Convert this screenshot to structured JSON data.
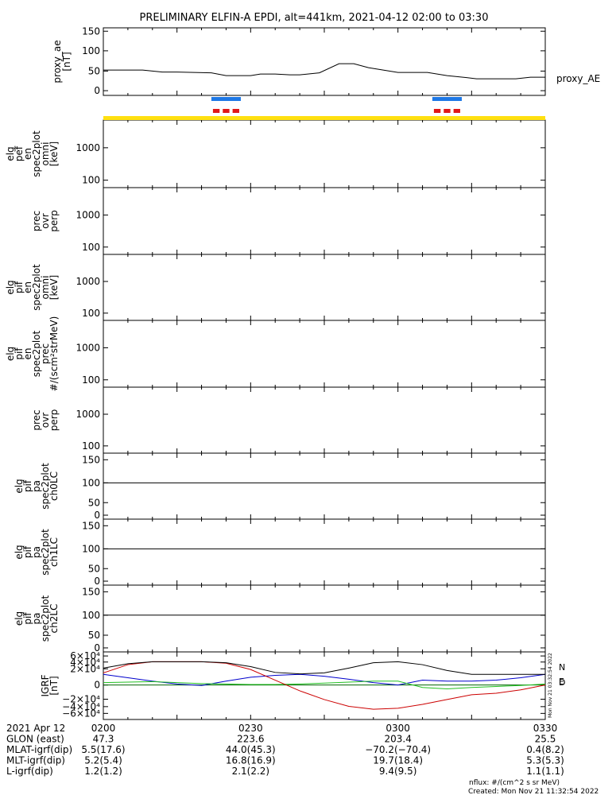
{
  "title": "PRELIMINARY ELFIN-A EPDI, alt=441km, 2021-04-12 02:00 to 03:30",
  "colors": {
    "ae_line": "#000000",
    "bar_blue": "#1e78e6",
    "bar_red": "#e01818",
    "bar_yellow": "#ffe010",
    "grf_n": "#0000cc",
    "grf_e": "#22c022",
    "grf_d": "#cc0000",
    "grf_total": "#000000"
  },
  "panels": [
    {
      "id": "proxy_ae",
      "ylabels": [
        "proxy_ae",
        "[nT]"
      ],
      "ticks": [
        "150",
        "100",
        "50",
        "0"
      ],
      "right_label": "proxy_AE"
    },
    {
      "id": "elb_pef",
      "ylabels": [
        "elg",
        "pef",
        "en",
        "spec2plot",
        "omni",
        "[keV]"
      ],
      "ticks": [
        "1000",
        "100"
      ]
    },
    {
      "id": "prec_ovr_perp_1",
      "ylabels": [
        "prec",
        "ovr",
        "perp"
      ],
      "ticks": [
        "1000",
        "100"
      ]
    },
    {
      "id": "elg_pif_omni",
      "ylabels": [
        "elg",
        "pif",
        "en",
        "spec2plot",
        "omni",
        "[keV]"
      ],
      "ticks": [
        "1000",
        "100"
      ]
    },
    {
      "id": "elg_pif_prec",
      "ylabels": [
        "elg",
        "pif",
        "en",
        "spec2plot",
        "prec",
        "#/(scm²strMeV)"
      ],
      "ticks": [
        "1000",
        "100"
      ]
    },
    {
      "id": "prec_ovr_perp_2",
      "ylabels": [
        "prec",
        "ovr",
        "perp"
      ],
      "ticks": [
        "1000",
        "100"
      ]
    },
    {
      "id": "ch0LC",
      "ylabels": [
        "elg",
        "pif",
        "pa",
        "spec2plot",
        "ch0LC"
      ],
      "ticks": [
        "150",
        "100",
        "50",
        "0"
      ]
    },
    {
      "id": "ch1LC",
      "ylabels": [
        "elg",
        "pif",
        "pa",
        "spec2plot",
        "ch1LC"
      ],
      "ticks": [
        "150",
        "100",
        "50",
        "0"
      ]
    },
    {
      "id": "ch2LC",
      "ylabels": [
        "elg",
        "pif",
        "pa",
        "spec2plot",
        "ch2LC"
      ],
      "ticks": [
        "150",
        "100",
        "50",
        "0"
      ]
    },
    {
      "id": "grf",
      "ylabels": [
        "IGRF",
        "[nT]"
      ],
      "ticks": [
        "6×10⁴",
        "4×10⁴",
        "2×10⁴",
        "0",
        "−2×10⁴",
        "−4×10⁴",
        "−6×10⁴"
      ]
    }
  ],
  "grf_legend": {
    "n": "N",
    "e": "E",
    "d": "D"
  },
  "side_stamp": "Mon Nov 21 03:32:54 2022",
  "footer": {
    "rows": [
      {
        "label": "2021 Apr 12",
        "values": [
          "0200",
          "0230",
          "0300",
          "0330"
        ]
      },
      {
        "label": "GLON (east)",
        "values": [
          "47.3",
          "223.6",
          "203.4",
          "25.5"
        ]
      },
      {
        "label": "MLAT-igrf(dip)",
        "values": [
          "5.5(17.6)",
          "44.0(45.3)",
          "−70.2(−70.4)",
          "0.4(8.2)"
        ]
      },
      {
        "label": "MLT-igrf(dip)",
        "values": [
          "5.2(5.4)",
          "16.8(16.9)",
          "19.7(18.4)",
          "5.3(5.3)"
        ]
      },
      {
        "label": "L-igrf(dip)",
        "values": [
          "1.2(1.2)",
          "2.1(2.2)",
          "9.4(9.5)",
          "1.1(1.1)"
        ]
      }
    ],
    "nflux": "nflux: #/(cm^2 s sr MeV)",
    "created": "Created: Mon Nov 21 11:32:54 2022"
  },
  "chart_data": [
    {
      "type": "line",
      "title": "PRELIMINARY ELFIN-A EPDI, alt=441km, 2021-04-12 02:00 to 03:30",
      "ylabel": "proxy_ae [nT]",
      "ylim": [
        0,
        150
      ],
      "x_minutes": [
        0,
        8,
        12,
        15,
        22,
        25,
        30,
        32,
        35,
        38,
        40,
        44,
        48,
        51,
        54,
        58,
        60,
        62,
        66,
        70,
        74,
        76,
        80,
        84,
        87,
        90
      ],
      "series": [
        {
          "name": "proxy_AE",
          "values": [
            52,
            52,
            47,
            47,
            45,
            38,
            38,
            42,
            42,
            40,
            40,
            45,
            68,
            68,
            58,
            50,
            46,
            46,
            46,
            38,
            33,
            30,
            30,
            30,
            34,
            34
          ]
        }
      ],
      "science_zones": [
        {
          "start_min": 22,
          "end_min": 28
        },
        {
          "start_min": 67,
          "end_min": 73
        }
      ]
    },
    {
      "type": "line",
      "ylabel": "IGRF [nT]",
      "ylim": [
        -65000,
        65000
      ],
      "x_minutes": [
        0,
        5,
        10,
        15,
        20,
        25,
        30,
        35,
        40,
        45,
        50,
        55,
        60,
        65,
        70,
        75,
        80,
        85,
        90
      ],
      "series": [
        {
          "name": "N",
          "values": [
            22000,
            15000,
            8000,
            2000,
            -1000,
            8000,
            16000,
            20000,
            22000,
            18000,
            12000,
            5000,
            0,
            10000,
            8000,
            8000,
            10000,
            15000,
            22000
          ]
        },
        {
          "name": "E",
          "values": [
            5000,
            6000,
            7000,
            5000,
            3000,
            2000,
            1000,
            1000,
            2000,
            4000,
            6000,
            8000,
            8000,
            -5000,
            -8000,
            -5000,
            -3000,
            -1000,
            2000
          ]
        },
        {
          "name": "D",
          "values": [
            25000,
            42000,
            48000,
            48000,
            48000,
            45000,
            32000,
            10000,
            -12000,
            -30000,
            -44000,
            -50000,
            -48000,
            -40000,
            -30000,
            -20000,
            -17000,
            -10000,
            0
          ]
        },
        {
          "name": "total",
          "values": [
            35000,
            44000,
            48000,
            48000,
            48000,
            46000,
            38000,
            26000,
            23000,
            25000,
            35000,
            46000,
            48000,
            42000,
            30000,
            22000,
            22000,
            22000,
            22000
          ]
        }
      ]
    }
  ]
}
